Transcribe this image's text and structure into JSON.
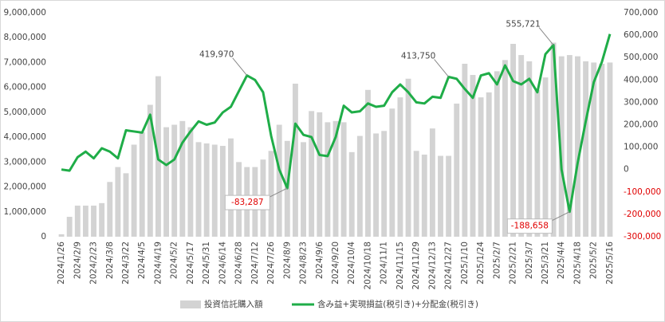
{
  "chart_data": {
    "type": "bar-line",
    "categories": [
      "2024/1/26",
      null,
      "2024/2/9",
      null,
      "2024/2/23",
      null,
      "2024/3/8",
      null,
      "2024/3/22",
      null,
      "2024/4/5",
      null,
      "2024/4/19",
      null,
      "2024/5/2",
      null,
      "2024/5/17",
      null,
      "2024/5/31",
      null,
      "2024/6/14",
      null,
      "2024/6/28",
      null,
      "2024/7/12",
      null,
      "2024/7/26",
      null,
      "2024/8/9",
      null,
      "2024/8/23",
      null,
      "2024/9/6",
      null,
      "2024/9/20",
      null,
      "2024/10/4",
      null,
      "2024/10/18",
      null,
      "2024/11/1",
      null,
      "2024/11/15",
      null,
      "2024/11/29",
      null,
      "2024/12/13",
      null,
      "2024/12/27",
      null,
      "2025/1/10",
      null,
      "2025/1/24",
      null,
      "2025/2/7",
      null,
      "2025/2/21",
      null,
      "2025/3/7",
      null,
      "2025/3/21",
      null,
      "2025/4/4",
      null,
      "2025/4/18",
      null,
      "2025/5/2",
      null,
      "2025/5/16"
    ],
    "series": [
      {
        "name": "投資信託購入額",
        "type": "bar",
        "axis": "y",
        "color": "#d3d3d3",
        "values": [
          100000,
          800000,
          1250000,
          1250000,
          1250000,
          1350000,
          2200000,
          2800000,
          2550000,
          3700000,
          4200000,
          5300000,
          6450000,
          4400000,
          4500000,
          4650000,
          4400000,
          3800000,
          3750000,
          3700000,
          3650000,
          3950000,
          3000000,
          2800000,
          2800000,
          3100000,
          3450000,
          4500000,
          3850000,
          6150000,
          3800000,
          5050000,
          5000000,
          4600000,
          4650000,
          4600000,
          3400000,
          4050000,
          5900000,
          4150000,
          4250000,
          5150000,
          5600000,
          6350000,
          3450000,
          3300000,
          4350000,
          3250000,
          3250000,
          5350000,
          6950000,
          6500000,
          5600000,
          5800000,
          6650000,
          7100000,
          7750000,
          7300000,
          7050000,
          5900000,
          6400000,
          7800000,
          7250000,
          7300000,
          7250000,
          7050000,
          7000000,
          6950000,
          7000000
        ]
      },
      {
        "name": "含み益+実現損益(税引き)+分配金(税引き)",
        "type": "line",
        "axis": "y2",
        "color": "#1fad48",
        "values": [
          0,
          -5000,
          55000,
          80000,
          50000,
          95000,
          80000,
          50000,
          175000,
          170000,
          165000,
          245000,
          45000,
          20000,
          45000,
          120000,
          170000,
          215000,
          200000,
          210000,
          255000,
          280000,
          350000,
          419970,
          400000,
          345000,
          150000,
          0,
          -83287,
          205000,
          155000,
          145000,
          65000,
          60000,
          145000,
          285000,
          255000,
          260000,
          295000,
          280000,
          285000,
          345000,
          380000,
          345000,
          300000,
          295000,
          325000,
          320000,
          413750,
          405000,
          360000,
          320000,
          420000,
          430000,
          380000,
          465000,
          395000,
          380000,
          405000,
          345000,
          515000,
          555721,
          0,
          -188658,
          30000,
          215000,
          390000,
          480000,
          605000
        ],
        "value_labels": [
          null,
          null,
          null,
          null,
          null,
          null,
          null,
          null,
          null,
          null,
          null,
          null,
          null,
          null,
          null,
          null,
          null,
          null,
          null,
          null,
          null,
          null,
          null,
          "419,970",
          null,
          null,
          null,
          null,
          "-83,287",
          null,
          null,
          null,
          null,
          null,
          null,
          null,
          null,
          null,
          null,
          null,
          null,
          null,
          null,
          null,
          null,
          null,
          null,
          null,
          "413,750",
          null,
          null,
          null,
          null,
          null,
          null,
          null,
          null,
          null,
          null,
          null,
          null,
          "555,721",
          null,
          "-188,658",
          null,
          null,
          null,
          null,
          null
        ]
      }
    ],
    "ylim": [
      0,
      9000000
    ],
    "yticks": [
      0,
      {
        "value": 1000000,
        "label": "1,000,000"
      },
      {
        "value": 2000000,
        "label": "2,000,000"
      },
      {
        "value": 3000000,
        "label": "3,000,000"
      },
      {
        "value": 4000000,
        "label": "4,000,000"
      },
      {
        "value": 5000000,
        "label": "5,000,000"
      },
      {
        "value": 6000000,
        "label": "6,000,000"
      },
      {
        "value": 7000000,
        "label": "7,000,000"
      },
      {
        "value": 8000000,
        "label": "8,000,000"
      },
      {
        "value": 9000000,
        "label": "9,000,000"
      }
    ],
    "y2lim": [
      -300000,
      700000
    ],
    "y2ticks": [
      {
        "value": -300000,
        "label": "-300,000"
      },
      {
        "value": -200000,
        "label": "-200,000"
      },
      {
        "value": -100000,
        "label": "-100,000"
      },
      0,
      {
        "value": 100000,
        "label": "100,000"
      },
      {
        "value": 200000,
        "label": "200,000"
      },
      {
        "value": 300000,
        "label": "300,000"
      },
      {
        "value": 400000,
        "label": "400,000"
      },
      {
        "value": 500000,
        "label": "500,000"
      },
      {
        "value": 600000,
        "label": "600,000"
      },
      {
        "value": 700000,
        "label": "700,000"
      }
    ],
    "negative_color": "#e00000",
    "legend": "bottom"
  }
}
